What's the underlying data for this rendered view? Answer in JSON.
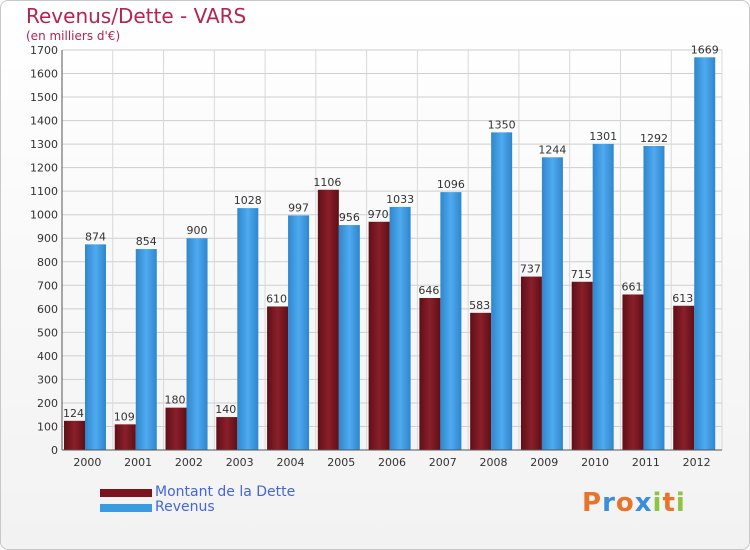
{
  "header": {
    "title": "Revenus/Dette - VARS",
    "subtitle": "(en milliers d'€)"
  },
  "chart_data": {
    "type": "bar",
    "title": "Revenus/Dette - VARS",
    "subtitle": "(en milliers d'€)",
    "categories": [
      "2000",
      "2001",
      "2002",
      "2003",
      "2004",
      "2005",
      "2006",
      "2007",
      "2008",
      "2009",
      "2010",
      "2011",
      "2012"
    ],
    "series": [
      {
        "name": "Montant de la Dette",
        "color": "#7a1520",
        "values": [
          124,
          109,
          180,
          140,
          610,
          1106,
          970,
          646,
          583,
          737,
          715,
          661,
          613
        ]
      },
      {
        "name": "Revenus",
        "color": "#3a9be0",
        "values": [
          874,
          854,
          900,
          1028,
          997,
          956,
          1033,
          1096,
          1350,
          1244,
          1301,
          1292,
          1669
        ]
      }
    ],
    "ylim": [
      0,
      1700
    ],
    "ytick_step": 100,
    "grid": true,
    "legend": "bottom-left"
  },
  "legend": {
    "items": [
      {
        "label": "Montant de la Dette",
        "color": "#7a1520"
      },
      {
        "label": "Revenus",
        "color": "#3a9be0"
      }
    ]
  },
  "logo": {
    "letters": [
      "P",
      "r",
      "o",
      "x",
      "i",
      "t",
      "i"
    ],
    "colors": [
      "#e8732a",
      "#3a8fd6",
      "#e8732a",
      "#3a8fd6",
      "#8cc63f",
      "#e8732a",
      "#8cc63f"
    ]
  }
}
